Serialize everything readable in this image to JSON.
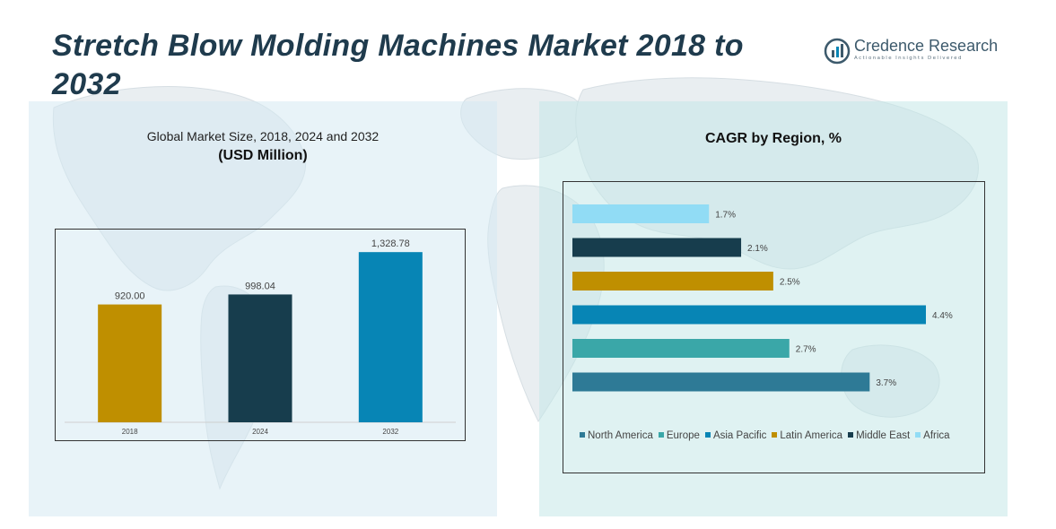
{
  "header": {
    "title": "Stretch Blow Molding Machines Market 2018 to 2032",
    "brand_name": "Credence Research",
    "brand_tagline": "Actionable Insights Delivered"
  },
  "left_panel": {
    "title": "Global Market Size, 2018, 2024 and 2032",
    "subtitle": "(USD Million)"
  },
  "right_panel": {
    "title": "CAGR by Region, %"
  },
  "colors": {
    "gold": "#bf8f00",
    "navy": "#173d4d",
    "blue": "#0785b5",
    "teal": "#3aa7a8",
    "steel": "#2e7a96",
    "light_blue": "#91dcf5",
    "title": "#1f3b4d"
  },
  "chart_data": [
    {
      "type": "bar",
      "categories": [
        "2018",
        "2024",
        "2032"
      ],
      "values": [
        920.0,
        998.04,
        1328.78
      ],
      "value_labels": [
        "920.00",
        "998.04",
        "1,328.78"
      ],
      "colors": [
        "#bf8f00",
        "#173d4d",
        "#0785b5"
      ],
      "title": "Global Market Size, 2018, 2024 and 2032",
      "subtitle": "(USD Million)",
      "ylim": [
        0,
        1400
      ],
      "grid": false
    },
    {
      "type": "bar",
      "orientation": "horizontal",
      "categories": [
        "Africa",
        "Middle East",
        "Latin America",
        "Asia Pacific",
        "Europe",
        "North America"
      ],
      "values": [
        1.7,
        2.1,
        2.5,
        4.4,
        2.7,
        3.7
      ],
      "value_labels": [
        "1.7%",
        "2.1%",
        "2.5%",
        "4.4%",
        "2.7%",
        "3.7%"
      ],
      "colors": [
        "#91dcf5",
        "#173d4d",
        "#bf8f00",
        "#0785b5",
        "#3aa7a8",
        "#2e7a96"
      ],
      "title": "CAGR by Region, %",
      "xlim": [
        0,
        4.4
      ],
      "legend": {
        "placement": "bottom",
        "entries": [
          "North America",
          "Europe",
          "Asia Pacific",
          "Latin America",
          "Middle East",
          "Africa"
        ],
        "colors": [
          "#2e7a96",
          "#3aa7a8",
          "#0785b5",
          "#bf8f00",
          "#173d4d",
          "#91dcf5"
        ]
      },
      "grid": false
    }
  ]
}
